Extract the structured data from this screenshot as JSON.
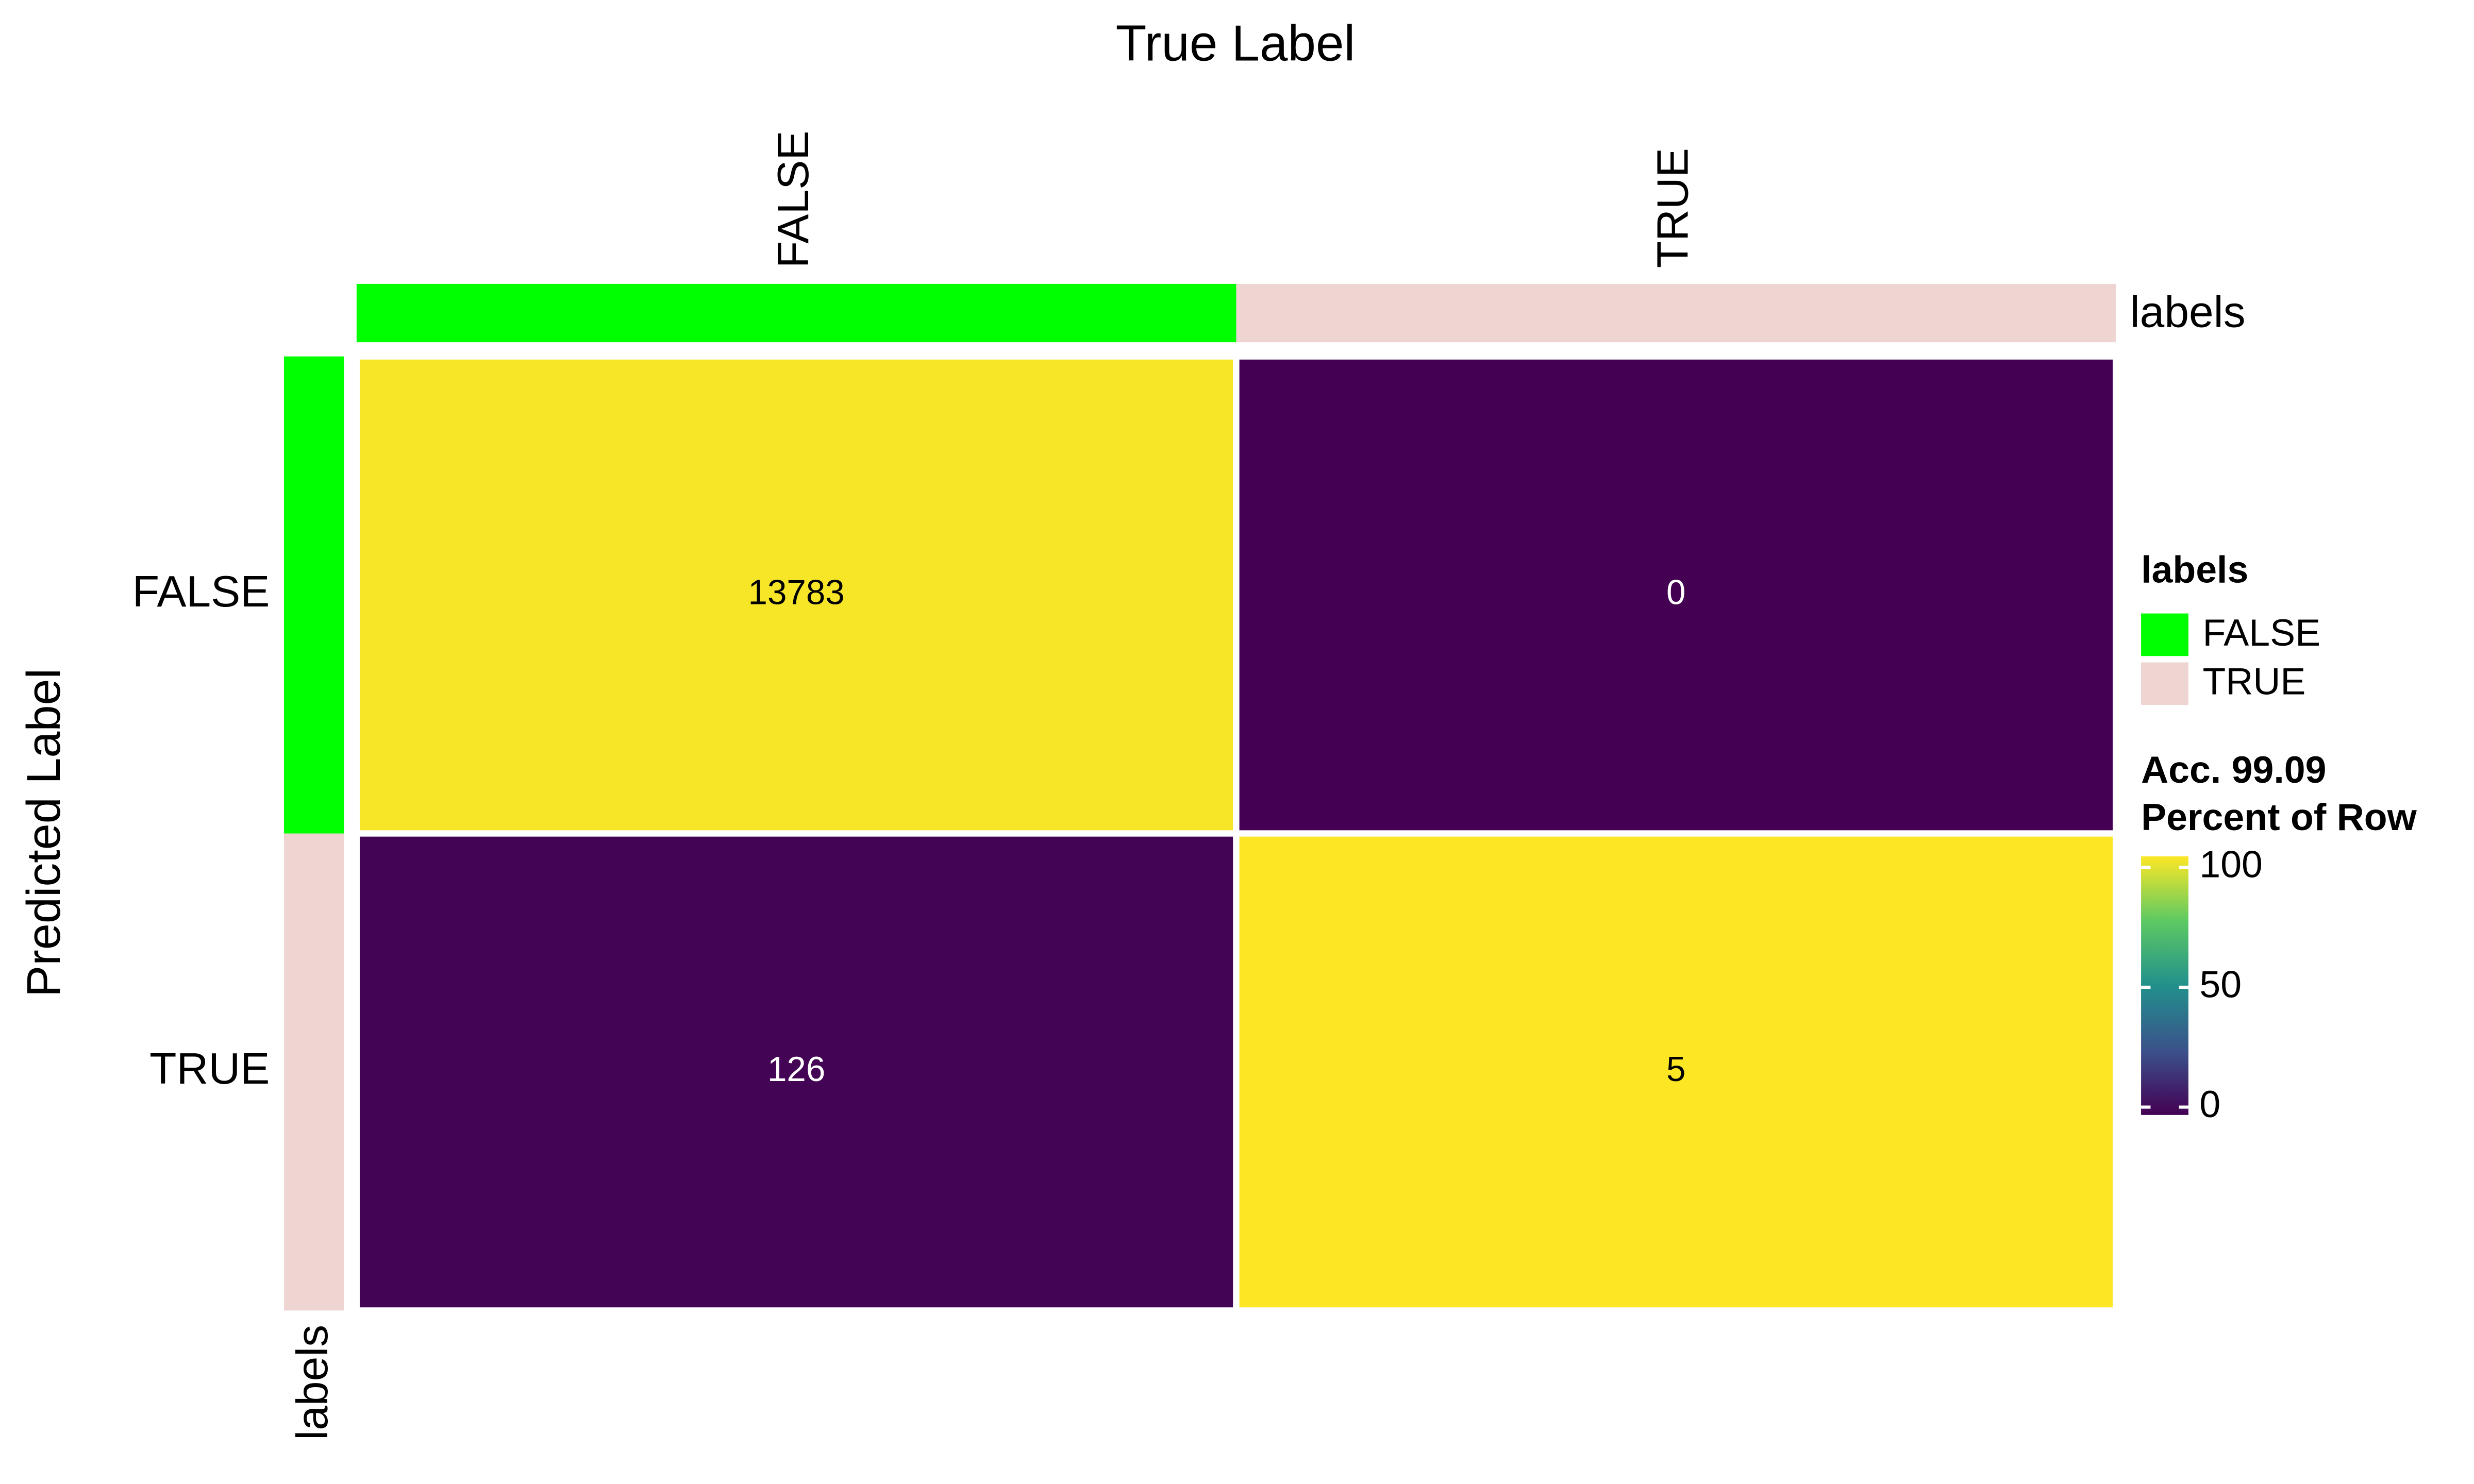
{
  "chart_data": {
    "type": "heatmap",
    "title": "True Label",
    "y_label": "Predicted Label",
    "x_categories": [
      "FALSE",
      "TRUE"
    ],
    "y_categories": [
      "FALSE",
      "TRUE"
    ],
    "values": [
      [
        13783,
        0
      ],
      [
        126,
        5
      ]
    ],
    "percent": [
      [
        99.1,
        0
      ],
      [
        0.9,
        100
      ]
    ],
    "annotation_title": "labels",
    "annotation_colors": [
      "#00ff00",
      "#eed5d2"
    ],
    "colorbar_title": [
      "Acc. 99.09",
      "Percent of Row"
    ],
    "clim": [
      0,
      100
    ],
    "cticks": [
      0,
      50,
      100
    ]
  }
}
